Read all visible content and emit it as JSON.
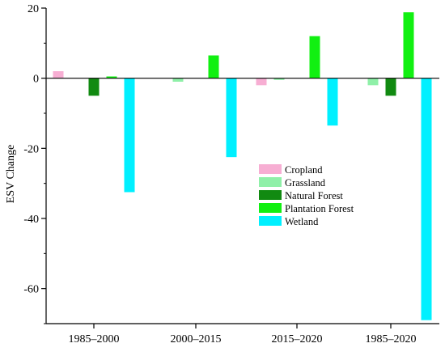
{
  "chart_data": {
    "type": "bar",
    "title": "",
    "xlabel": "",
    "ylabel": "ESV Change",
    "ylim": [
      -70,
      20
    ],
    "yticks": [
      20,
      0,
      -20,
      -40,
      -60
    ],
    "grid": false,
    "legend_position": "center-right",
    "categories": [
      "1985–2000",
      "2000–2015",
      "2015–2020",
      "1985–2020"
    ],
    "series": [
      {
        "name": "Cropland",
        "color": "#f7aed3",
        "values": [
          2.0,
          0.0,
          -2.0,
          0.0
        ]
      },
      {
        "name": "Grassland",
        "color": "#8ff0a8",
        "values": [
          0.0,
          -1.0,
          -0.5,
          -2.0
        ]
      },
      {
        "name": "Natural Forest",
        "color": "#118a11",
        "values": [
          -5.0,
          0.0,
          0.0,
          -5.0
        ]
      },
      {
        "name": "Plantation Forest",
        "color": "#11f011",
        "values": [
          0.5,
          6.5,
          12.0,
          18.8
        ]
      },
      {
        "name": "Wetland",
        "color": "#00f0ff",
        "values": [
          -32.5,
          -22.5,
          -13.5,
          -69.0
        ]
      }
    ]
  }
}
